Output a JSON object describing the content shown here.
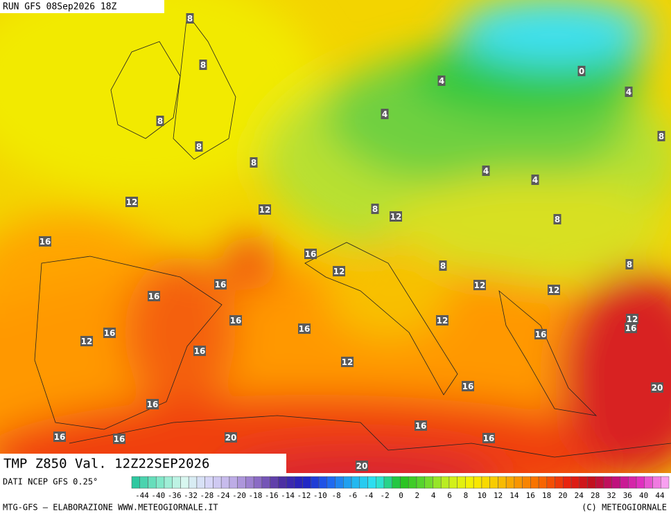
{
  "header": {
    "run": "RUN GFS 08Sep2026 18Z"
  },
  "map": {
    "title": "TMP Z850 Val. 12Z22SEP2026",
    "labels": [
      8,
      8,
      8,
      8,
      8,
      0,
      4,
      4,
      4,
      8,
      4,
      4,
      12,
      12,
      8,
      12,
      8,
      16,
      16,
      8,
      8,
      12,
      16,
      12,
      12,
      16,
      16,
      16,
      12,
      12,
      16,
      16,
      12,
      16,
      16,
      12,
      16,
      20,
      16,
      16,
      16,
      16,
      20,
      16,
      20
    ]
  },
  "footer": {
    "source": "DATI NCEP GFS 0.25°",
    "credit": "MTG-GFS — ELABORAZIONE WWW.METEOGIORNALE.IT",
    "copyright": "(C) METEOGIORNALE"
  },
  "legend": {
    "ticks": [
      -44,
      -40,
      -36,
      -32,
      -28,
      -24,
      -20,
      -18,
      -16,
      -14,
      -12,
      -10,
      -8,
      -6,
      -4,
      -2,
      0,
      2,
      4,
      6,
      8,
      10,
      12,
      14,
      16,
      18,
      20,
      24,
      28,
      32,
      36,
      40,
      44
    ]
  }
}
